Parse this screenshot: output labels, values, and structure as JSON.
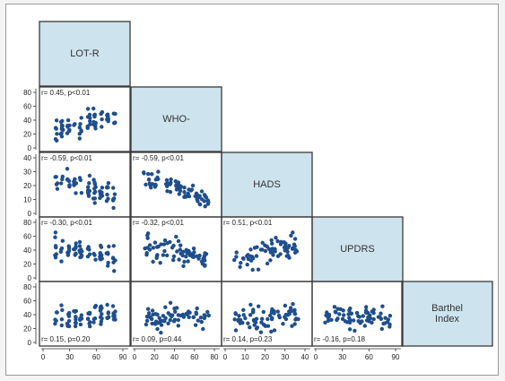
{
  "colors": {
    "point": "#1f4e8c",
    "diag_fill": "#cde3ee",
    "background": "#ffffff"
  },
  "chart_data": {
    "type": "scatter",
    "variables": [
      {
        "name": "LOT-R",
        "label_lines": [
          "LOT-R"
        ],
        "ticks_y": [
          0,
          20,
          40,
          60,
          80
        ],
        "ticks_x": [
          0,
          30,
          60,
          90
        ],
        "range": [
          0,
          90
        ]
      },
      {
        "name": "WHO-",
        "label_lines": [
          "WHO-"
        ],
        "ticks_y": [
          0,
          10,
          20,
          30,
          40
        ],
        "ticks_x": [
          0,
          20,
          40,
          60,
          80
        ],
        "range": [
          0,
          90
        ]
      },
      {
        "name": "HADS",
        "label_lines": [
          "HADS"
        ],
        "ticks_y": [
          0,
          20,
          40,
          60,
          80
        ],
        "ticks_x": [
          0,
          10,
          20,
          30,
          40
        ],
        "range": [
          0,
          40
        ]
      },
      {
        "name": "UPDRS",
        "label_lines": [
          "UPDRS"
        ],
        "ticks_y": [
          0,
          20,
          40,
          60,
          80
        ],
        "ticks_x": [
          0,
          30,
          60,
          90
        ],
        "range": [
          0,
          90
        ]
      },
      {
        "name": "Barthel Index",
        "label_lines": [
          "Barthel",
          "Index"
        ],
        "ticks_y": [
          0,
          20,
          40,
          60,
          80
        ],
        "ticks_x": [],
        "range": [
          0,
          100
        ]
      }
    ],
    "panels": [
      {
        "row": 1,
        "col": 0,
        "annotation": "r= 0.45, p<0.01",
        "annotation_pos": "top"
      },
      {
        "row": 2,
        "col": 0,
        "annotation": "r= -0.59, p<0.01",
        "annotation_pos": "top"
      },
      {
        "row": 2,
        "col": 1,
        "annotation": "r= -0.59, p<0.01",
        "annotation_pos": "top"
      },
      {
        "row": 3,
        "col": 0,
        "annotation": "r= -0.30, p<0.01",
        "annotation_pos": "top"
      },
      {
        "row": 3,
        "col": 1,
        "annotation": "r= -0.32, p<0.01",
        "annotation_pos": "top"
      },
      {
        "row": 3,
        "col": 2,
        "annotation": "r= 0.51, p<0.01",
        "annotation_pos": "top"
      },
      {
        "row": 4,
        "col": 0,
        "annotation": "r= 0.15, p=0.20",
        "annotation_pos": "bottom"
      },
      {
        "row": 4,
        "col": 1,
        "annotation": "r= 0.09, p=0.44",
        "annotation_pos": "bottom"
      },
      {
        "row": 4,
        "col": 2,
        "annotation": "r= 0.14, p=0.23",
        "annotation_pos": "bottom"
      },
      {
        "row": 4,
        "col": 3,
        "annotation": "r= -0.16, p=0.18",
        "annotation_pos": "bottom"
      }
    ],
    "grid": false,
    "legend": "none"
  }
}
